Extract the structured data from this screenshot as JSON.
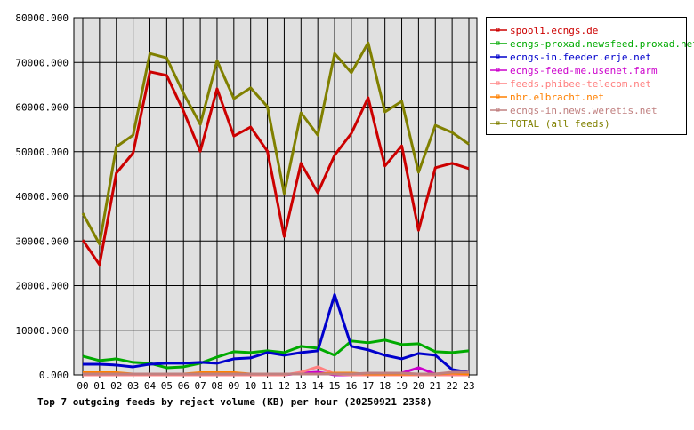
{
  "chart_data": {
    "type": "line",
    "title": "Top 7 outgoing feeds by reject volume (KB) per hour (20250921 2358)",
    "xlabel": "",
    "ylabel": "",
    "ylim": [
      0,
      80000
    ],
    "yticks": [
      "0.000",
      "10000.000",
      "20000.000",
      "30000.000",
      "40000.000",
      "50000.000",
      "60000.000",
      "70000.000",
      "80000.000"
    ],
    "grid": true,
    "legend_position": "right",
    "categories": [
      "00",
      "01",
      "02",
      "03",
      "04",
      "05",
      "06",
      "07",
      "08",
      "09",
      "10",
      "11",
      "12",
      "13",
      "14",
      "15",
      "16",
      "17",
      "18",
      "19",
      "20",
      "21",
      "22",
      "23"
    ],
    "series": [
      {
        "name": "spool1.ecngs.de",
        "color": "#cc0000",
        "values": [
          30200,
          24700,
          45200,
          49700,
          67900,
          67100,
          59100,
          50100,
          64100,
          53500,
          55500,
          50100,
          31000,
          47400,
          40800,
          49200,
          54100,
          62100,
          46800,
          51300,
          32400,
          46400,
          47400,
          46200
        ]
      },
      {
        "name": "ecngs-proxad.newsfeed.proxad.net",
        "color": "#00aa00",
        "values": [
          4200,
          3200,
          3600,
          2800,
          2600,
          1600,
          1800,
          2600,
          4000,
          5200,
          5000,
          5400,
          5000,
          6400,
          6000,
          4400,
          7600,
          7200,
          7800,
          6800,
          7000,
          5200,
          5000,
          5400
        ]
      },
      {
        "name": "ecngs-in.feeder.erje.net",
        "color": "#0000cc",
        "values": [
          2400,
          2400,
          2200,
          1800,
          2400,
          2600,
          2600,
          2800,
          2600,
          3600,
          3800,
          5000,
          4400,
          5000,
          5400,
          18000,
          6400,
          5600,
          4400,
          3600,
          4800,
          4400,
          1200,
          600
        ]
      },
      {
        "name": "ecngs-feed-me.usenet.farm",
        "color": "#cc00cc",
        "values": [
          0,
          0,
          0,
          0,
          0,
          0,
          0,
          0,
          0,
          0,
          0,
          0,
          0,
          400,
          600,
          0,
          0,
          0,
          0,
          400,
          1600,
          200,
          0,
          0
        ]
      },
      {
        "name": "feeds.phibee-telecom.net",
        "color": "#ff8080",
        "values": [
          0,
          0,
          0,
          0,
          0,
          0,
          0,
          0,
          0,
          0,
          0,
          0,
          0,
          600,
          1800,
          200,
          0,
          0,
          0,
          0,
          0,
          0,
          0,
          0
        ]
      },
      {
        "name": "nbr.elbracht.net",
        "color": "#ff8000",
        "values": [
          500,
          500,
          500,
          200,
          200,
          200,
          200,
          500,
          500,
          500,
          200,
          200,
          200,
          200,
          200,
          400,
          400,
          200,
          200,
          200,
          200,
          200,
          400,
          200
        ]
      },
      {
        "name": "ecngs-in.news.weretis.net",
        "color": "#c08080",
        "values": [
          200,
          200,
          200,
          200,
          200,
          200,
          200,
          200,
          200,
          200,
          200,
          200,
          200,
          200,
          200,
          200,
          200,
          400,
          400,
          400,
          200,
          200,
          600,
          600
        ]
      },
      {
        "name": "TOTAL (all feeds)",
        "color": "#808000",
        "values": [
          36200,
          29300,
          51100,
          53700,
          72000,
          71000,
          63100,
          56100,
          70400,
          61900,
          64300,
          60100,
          40600,
          58700,
          53700,
          72000,
          67700,
          74400,
          58900,
          61300,
          45400,
          55900,
          54300,
          51700
        ]
      }
    ]
  }
}
